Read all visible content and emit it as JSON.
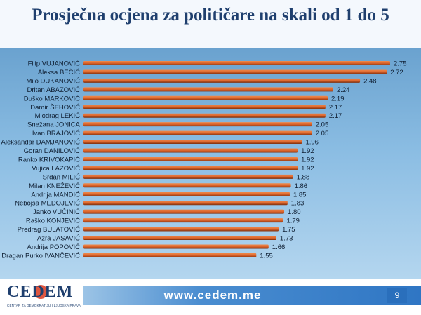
{
  "slide": {
    "title": "Prosječna ocjena za političare na skali od 1 do 5",
    "footer_url": "www.cedem.me",
    "page_number": "9",
    "logo_text": "CEDEM",
    "logo_subtitle": "CENTAR ZA DEMOKRATIJU I LJUDSKA PRAVA"
  },
  "colors": {
    "bar_fill": "#d9622a",
    "bar_shadow": "#7a2d0c",
    "panel_top": "#6aa2cf",
    "title": "#1f3f6e"
  },
  "chart_data": {
    "type": "bar",
    "orientation": "horizontal",
    "categories": [
      "Filip VUJANOVIĆ",
      "Aleksa BEČIĆ",
      "Milo ĐUKANOVIĆ",
      "Dritan ABAZOVIĆ",
      "Duško MARKOVIĆ",
      "Damir ŠEHOVIĆ",
      "Miodrag LEKIĆ",
      "Snežana JONICA",
      "Ivan BRAJOVIĆ",
      "Aleksandar DAMJANOVIĆ",
      "Goran DANILOVIĆ",
      "Ranko KRIVOKAPIĆ",
      "Vujica LAZOVIĆ",
      "Srđan MILIĆ",
      "Milan KNEŽEVIĆ",
      "Andrija MANDIĆ",
      "Nebojša MEDOJEVIĆ",
      "Janko VUČINIĆ",
      "Raško KONJEVIĆ",
      "Predrag BULATOVIĆ",
      "Azra JASAVIĆ",
      "Andrija POPOVIĆ",
      "Dragan Purko IVANČEVIĆ"
    ],
    "values": [
      2.75,
      2.72,
      2.48,
      2.24,
      2.19,
      2.17,
      2.17,
      2.05,
      2.05,
      1.96,
      1.92,
      1.92,
      1.92,
      1.88,
      1.86,
      1.85,
      1.83,
      1.8,
      1.79,
      1.75,
      1.73,
      1.66,
      1.55
    ],
    "value_labels": [
      "2.75",
      "2.72",
      "2.48",
      "2.24",
      "2.19",
      "2.17",
      "2.17",
      "2.05",
      "2.05",
      "1.96",
      "1.92",
      "1.92",
      "1.92",
      "1.88",
      "1.86",
      "1.85",
      "1.83",
      "1.80",
      "1.79",
      "1.75",
      "1.73",
      "1.66",
      "1.55"
    ],
    "title": "Prosječna ocjena za političare na skali od 1 do 5",
    "xlabel": "",
    "ylabel": "",
    "xlim": [
      0,
      2.75
    ],
    "grid": false,
    "legend": "none"
  }
}
